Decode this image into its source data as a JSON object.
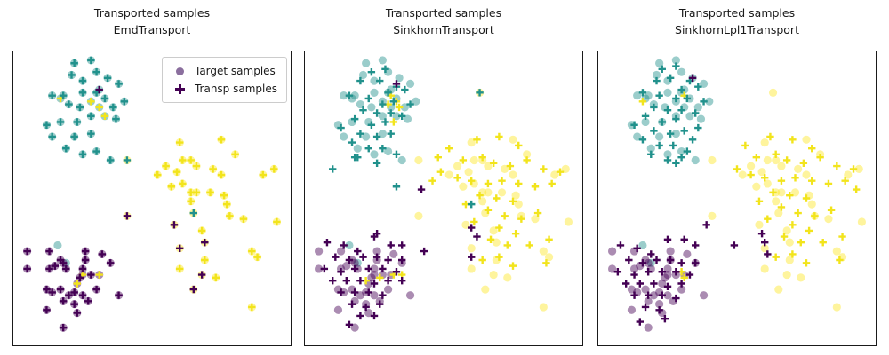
{
  "chart_data": {
    "type": "scatter",
    "colormap": "viridis",
    "grid": false,
    "axes_ticks": false,
    "colors": {
      "teal": "#21918c",
      "yellow_circle": "#fde725",
      "yellow_plus": "#f2e41c",
      "purple_circle": "#440154",
      "dark_plus": "#440154",
      "circle_opacity": 0.45
    },
    "legend": {
      "position": "upper right of first panel",
      "items": [
        {
          "label": "Target samples",
          "marker": "circle"
        },
        {
          "label": "Transp samples",
          "marker": "plus"
        }
      ]
    },
    "coords_note": "points are [x,y,...] pairs in percent of plot area, y increases downward",
    "targets": {
      "teal": [
        22,
        4,
        28,
        3,
        30,
        7,
        21,
        8,
        25,
        10,
        34,
        9,
        38,
        11,
        31,
        13,
        14,
        15,
        18,
        15,
        25,
        14,
        30,
        14,
        33,
        16,
        40,
        17,
        17,
        16,
        20,
        18,
        24,
        19,
        28,
        17,
        31,
        19,
        36,
        19,
        37,
        23,
        12,
        25,
        17,
        24,
        23,
        24,
        28,
        22,
        33,
        22,
        14,
        29,
        22,
        29,
        28,
        28,
        19,
        33,
        25,
        35,
        30,
        34,
        35,
        37,
        16,
        66,
        19,
        72
      ],
      "yellow": [
        60,
        31,
        75,
        30,
        80,
        35,
        55,
        39,
        52,
        42,
        59,
        41,
        61,
        37,
        64,
        37,
        66,
        39,
        72,
        40,
        75,
        42,
        90,
        42,
        94,
        40,
        57,
        46,
        61,
        45,
        64,
        48,
        66,
        48,
        71,
        48,
        64,
        51,
        76,
        49,
        77,
        52,
        78,
        56,
        65,
        55,
        83,
        57,
        95,
        58,
        58,
        59,
        68,
        61,
        60,
        67,
        69,
        65,
        86,
        68,
        88,
        70,
        69,
        71,
        60,
        74,
        68,
        76,
        73,
        77,
        65,
        81,
        86,
        87,
        41,
        37,
        41,
        56,
        63,
        14
      ],
      "purple": [
        5,
        68,
        13,
        68,
        17,
        71,
        5,
        74,
        13,
        74,
        15,
        73,
        18,
        72,
        19,
        74,
        26,
        68,
        26,
        71,
        25,
        74,
        32,
        69,
        35,
        72,
        28,
        76,
        25,
        76,
        31,
        76,
        23,
        79,
        12,
        81,
        14,
        82,
        17,
        81,
        20,
        83,
        22,
        82,
        25,
        83,
        27,
        85,
        18,
        85,
        22,
        86,
        12,
        88,
        23,
        89,
        18,
        94,
        38,
        83,
        30,
        81,
        24,
        77
      ]
    },
    "panels": [
      {
        "id": "emd",
        "title1": "Transported samples",
        "title2": "EmdTransport",
        "transp": {
          "teal": [
            22,
            4,
            28,
            3,
            30,
            7,
            21,
            8,
            25,
            10,
            34,
            9,
            38,
            11,
            14,
            15,
            18,
            15,
            25,
            14,
            30,
            14,
            33,
            16,
            40,
            17,
            20,
            18,
            24,
            19,
            36,
            19,
            37,
            23,
            12,
            25,
            17,
            24,
            23,
            24,
            28,
            22,
            14,
            29,
            22,
            29,
            28,
            28,
            19,
            33,
            25,
            35,
            30,
            34,
            35,
            37,
            41,
            37,
            65,
            55
          ],
          "yellow": [
            17,
            16,
            28,
            17,
            31,
            19,
            33,
            22,
            60,
            31,
            75,
            30,
            80,
            35,
            55,
            39,
            52,
            42,
            59,
            41,
            61,
            37,
            64,
            37,
            66,
            39,
            72,
            40,
            75,
            42,
            90,
            42,
            94,
            40,
            57,
            46,
            61,
            45,
            64,
            48,
            66,
            48,
            71,
            48,
            64,
            51,
            76,
            49,
            77,
            52,
            78,
            56,
            83,
            57,
            95,
            58,
            68,
            61,
            86,
            68,
            88,
            70,
            69,
            71,
            60,
            74,
            73,
            77,
            86,
            87,
            25,
            76,
            23,
            79,
            31,
            76
          ],
          "dark": [
            31,
            13,
            41,
            56,
            58,
            59,
            60,
            67,
            69,
            65,
            68,
            76,
            65,
            81,
            5,
            68,
            13,
            68,
            17,
            71,
            5,
            74,
            13,
            74,
            15,
            73,
            18,
            72,
            19,
            74,
            26,
            68,
            26,
            71,
            25,
            74,
            32,
            69,
            35,
            72,
            28,
            76,
            12,
            81,
            14,
            82,
            17,
            81,
            20,
            83,
            22,
            82,
            25,
            83,
            27,
            85,
            18,
            85,
            22,
            86,
            12,
            88,
            23,
            89,
            18,
            94,
            38,
            83,
            30,
            81,
            24,
            77
          ]
        }
      },
      {
        "id": "sinkhorn",
        "title1": "Transported samples",
        "title2": "SinkhornTransport",
        "transp": {
          "teal": [
            24,
            7,
            29,
            6,
            27,
            10,
            20,
            10,
            33,
            12,
            36,
            13,
            30,
            14,
            16,
            15,
            23,
            16,
            28,
            18,
            32,
            17,
            38,
            18,
            21,
            20,
            26,
            21,
            31,
            21,
            35,
            22,
            18,
            23,
            24,
            25,
            29,
            24,
            13,
            26,
            20,
            28,
            26,
            29,
            31,
            28,
            17,
            31,
            23,
            33,
            28,
            33,
            33,
            35,
            19,
            36,
            26,
            38,
            10,
            40,
            18,
            36,
            33,
            46,
            60,
            52,
            63,
            14
          ],
          "yellow": [
            31,
            15,
            33,
            17,
            30,
            18,
            34,
            19,
            32,
            24,
            52,
            33,
            62,
            30,
            70,
            29,
            77,
            32,
            57,
            37,
            64,
            36,
            68,
            38,
            74,
            39,
            80,
            37,
            86,
            40,
            92,
            41,
            49,
            41,
            55,
            43,
            60,
            44,
            66,
            45,
            71,
            44,
            77,
            45,
            83,
            46,
            89,
            45,
            63,
            49,
            69,
            50,
            75,
            51,
            58,
            52,
            66,
            54,
            72,
            56,
            78,
            57,
            84,
            55,
            61,
            58,
            70,
            60,
            76,
            62,
            67,
            64,
            73,
            66,
            81,
            66,
            88,
            64,
            70,
            70,
            64,
            71,
            75,
            73,
            87,
            72,
            46,
            44,
            48,
            36,
            27,
            77,
            32,
            76,
            35,
            76,
            22,
            78
          ],
          "dark": [
            33,
            11,
            42,
            47,
            60,
            60,
            62,
            63,
            60,
            70,
            26,
            62,
            43,
            68,
            8,
            65,
            14,
            66,
            19,
            68,
            25,
            63,
            31,
            66,
            35,
            66,
            11,
            70,
            16,
            71,
            21,
            70,
            26,
            70,
            30,
            71,
            35,
            71,
            7,
            74,
            13,
            75,
            18,
            74,
            23,
            74,
            28,
            74,
            33,
            75,
            10,
            78,
            15,
            78,
            20,
            78,
            25,
            79,
            30,
            78,
            35,
            78,
            13,
            82,
            18,
            82,
            23,
            82,
            28,
            83,
            17,
            86,
            22,
            87,
            27,
            86,
            20,
            90,
            25,
            90,
            16,
            93
          ]
        }
      },
      {
        "id": "sinkhorn_lpl1",
        "title1": "Transported samples",
        "title2": "SinkhornLpl1Transport",
        "transp": {
          "teal": [
            23,
            6,
            28,
            5,
            26,
            9,
            21,
            10,
            33,
            10,
            36,
            12,
            30,
            13,
            16,
            14,
            22,
            15,
            28,
            16,
            32,
            16,
            38,
            17,
            20,
            19,
            25,
            20,
            30,
            20,
            35,
            21,
            17,
            22,
            23,
            24,
            28,
            23,
            13,
            25,
            20,
            27,
            26,
            28,
            31,
            27,
            16,
            30,
            22,
            32,
            27,
            32,
            32,
            34,
            19,
            35,
            25,
            37,
            30,
            36,
            34,
            30,
            36,
            26,
            28,
            38
          ],
          "yellow": [
            16,
            17,
            31,
            15,
            53,
            32,
            62,
            29,
            70,
            30,
            77,
            33,
            57,
            36,
            64,
            35,
            68,
            37,
            74,
            38,
            80,
            36,
            86,
            39,
            92,
            40,
            50,
            40,
            55,
            42,
            60,
            43,
            66,
            44,
            71,
            43,
            77,
            44,
            83,
            45,
            89,
            44,
            63,
            48,
            69,
            49,
            75,
            50,
            58,
            51,
            66,
            53,
            72,
            55,
            78,
            56,
            84,
            54,
            61,
            57,
            70,
            59,
            76,
            61,
            67,
            63,
            73,
            65,
            81,
            65,
            88,
            63,
            70,
            69,
            64,
            70,
            75,
            72,
            87,
            71,
            93,
            47,
            30,
            75,
            31,
            77
          ],
          "dark": [
            34,
            9,
            39,
            59,
            49,
            66,
            59,
            62,
            60,
            65,
            61,
            69,
            8,
            66,
            14,
            67,
            19,
            69,
            25,
            64,
            31,
            64,
            35,
            66,
            11,
            71,
            16,
            72,
            21,
            71,
            26,
            71,
            30,
            72,
            35,
            72,
            7,
            75,
            13,
            76,
            18,
            75,
            23,
            75,
            28,
            75,
            33,
            76,
            10,
            79,
            15,
            79,
            20,
            79,
            25,
            80,
            30,
            79,
            13,
            83,
            18,
            83,
            23,
            83,
            28,
            84,
            17,
            87,
            22,
            88,
            15,
            92,
            24,
            91
          ]
        }
      }
    ]
  }
}
